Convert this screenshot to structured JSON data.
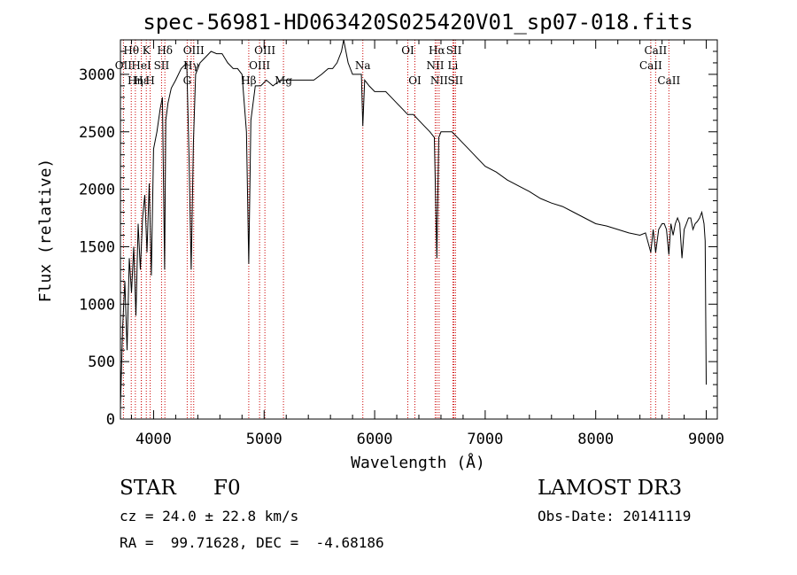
{
  "chart_data": {
    "type": "line",
    "title": "spec-56981-HD063420S025420V01_sp07-018.fits",
    "xlabel": "Wavelength (Å)",
    "ylabel": "Flux (relative)",
    "xlim": [
      3700,
      9100
    ],
    "ylim": [
      0,
      3300
    ],
    "xticks": [
      4000,
      5000,
      6000,
      7000,
      8000,
      9000
    ],
    "yticks": [
      0,
      500,
      1000,
      1500,
      2000,
      2500,
      3000
    ],
    "grid": false,
    "series": [
      {
        "x": [
          3700,
          3720,
          3740,
          3760,
          3780,
          3800,
          3820,
          3840,
          3860,
          3880,
          3900,
          3920,
          3940,
          3960,
          3980,
          4000,
          4030,
          4060,
          4080,
          4100,
          4110,
          4130,
          4160,
          4200,
          4250,
          4300,
          4320,
          4340,
          4360,
          4380,
          4420,
          4470,
          4520,
          4570,
          4620,
          4670,
          4720,
          4760,
          4800,
          4840,
          4861,
          4880,
          4920,
          4970,
          5020,
          5080,
          5150,
          5220,
          5300,
          5380,
          5450,
          5520,
          5580,
          5620,
          5660,
          5700,
          5720,
          5740,
          5760,
          5800,
          5840,
          5880,
          5893,
          5910,
          5950,
          6000,
          6050,
          6100,
          6150,
          6200,
          6250,
          6300,
          6350,
          6400,
          6450,
          6500,
          6540,
          6563,
          6580,
          6600,
          6650,
          6700,
          6750,
          6800,
          6850,
          6900,
          6950,
          7000,
          7100,
          7200,
          7300,
          7400,
          7500,
          7600,
          7700,
          7800,
          7900,
          8000,
          8100,
          8200,
          8300,
          8400,
          8450,
          8498,
          8520,
          8542,
          8570,
          8600,
          8620,
          8640,
          8662,
          8680,
          8700,
          8720,
          8740,
          8760,
          8780,
          8800,
          8820,
          8840,
          8860,
          8880,
          8900,
          8920,
          8940,
          8960,
          8980,
          8990,
          9000
        ],
        "y": [
          100,
          800,
          1200,
          600,
          1400,
          1100,
          1500,
          900,
          1700,
          1300,
          1750,
          1950,
          1450,
          2050,
          1250,
          2350,
          2500,
          2700,
          2800,
          1300,
          2600,
          2750,
          2880,
          2950,
          3050,
          3100,
          2300,
          1300,
          2400,
          3000,
          3100,
          3150,
          3200,
          3180,
          3180,
          3100,
          3050,
          3050,
          3000,
          2500,
          1350,
          2600,
          2900,
          2900,
          2950,
          2900,
          2950,
          2950,
          2950,
          2950,
          2950,
          3000,
          3050,
          3050,
          3100,
          3200,
          3300,
          3200,
          3100,
          3000,
          3000,
          3000,
          2550,
          2950,
          2900,
          2850,
          2850,
          2850,
          2800,
          2750,
          2700,
          2650,
          2650,
          2600,
          2550,
          2500,
          2450,
          1400,
          2450,
          2500,
          2500,
          2500,
          2450,
          2400,
          2350,
          2300,
          2250,
          2200,
          2150,
          2080,
          2030,
          1980,
          1920,
          1880,
          1850,
          1800,
          1750,
          1700,
          1680,
          1650,
          1620,
          1600,
          1620,
          1450,
          1650,
          1450,
          1650,
          1700,
          1700,
          1650,
          1430,
          1700,
          1600,
          1700,
          1750,
          1700,
          1400,
          1650,
          1700,
          1750,
          1750,
          1650,
          1700,
          1720,
          1750,
          1800,
          1700,
          1550,
          300
        ]
      }
    ],
    "spectral_lines": [
      {
        "label": "Hθ",
        "x": 3798,
        "row": 0
      },
      {
        "label": "K",
        "x": 3934,
        "row": 0
      },
      {
        "label": "Hδ",
        "x": 4102,
        "row": 0
      },
      {
        "label": "OIII",
        "x": 4363,
        "row": 0
      },
      {
        "label": "OIII",
        "x": 5007,
        "row": 0
      },
      {
        "label": "OI",
        "x": 6300,
        "row": 0
      },
      {
        "label": "Hα",
        "x": 6563,
        "row": 0
      },
      {
        "label": "SII",
        "x": 6717,
        "row": 0
      },
      {
        "label": "CaII",
        "x": 8542,
        "row": 0
      },
      {
        "label": "OII",
        "x": 3727,
        "row": 1
      },
      {
        "label": "HeI",
        "x": 3889,
        "row": 1
      },
      {
        "label": "SII",
        "x": 4072,
        "row": 1
      },
      {
        "label": "Hγ",
        "x": 4340,
        "row": 1
      },
      {
        "label": "OIII",
        "x": 4959,
        "row": 1
      },
      {
        "label": "Na",
        "x": 5893,
        "row": 1
      },
      {
        "label": "NII",
        "x": 6548,
        "row": 1
      },
      {
        "label": "Li",
        "x": 6708,
        "row": 1
      },
      {
        "label": "CaII",
        "x": 8498,
        "row": 1
      },
      {
        "label": "Hη",
        "x": 3835,
        "row": 2
      },
      {
        "label": "H",
        "x": 3969,
        "row": 2
      },
      {
        "label": "G",
        "x": 4304,
        "row": 2
      },
      {
        "label": "Hβ",
        "x": 4861,
        "row": 2
      },
      {
        "label": "Mg",
        "x": 5175,
        "row": 2
      },
      {
        "label": "OI",
        "x": 6364,
        "row": 2
      },
      {
        "label": "NII",
        "x": 6583,
        "row": 2
      },
      {
        "label": "SII",
        "x": 6731,
        "row": 2
      },
      {
        "label": "CaII",
        "x": 8662,
        "row": 2
      },
      {
        "label": "Hε",
        "x": 3889,
        "row": 2
      }
    ],
    "line_color": "#000000",
    "marker_color": "#cc0000"
  },
  "info": {
    "class": "STAR",
    "subclass": "F0",
    "survey": "LAMOST DR3",
    "cz": "cz = 24.0 ± 22.8 km/s",
    "obs_date": "Obs-Date: 20141119",
    "coords": "RA =  99.71628, DEC =  -4.68186"
  }
}
